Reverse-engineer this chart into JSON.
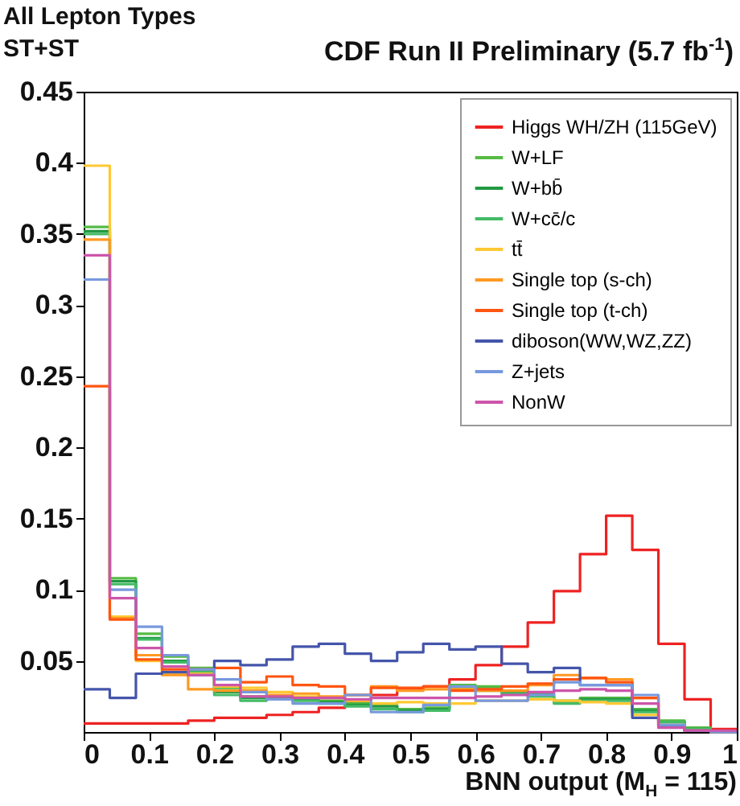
{
  "chart_data": {
    "type": "histogram",
    "title": "CDF Run II Preliminary (5.7 fb$^{-1}$)",
    "annotations": [
      "All Lepton Types",
      "ST+ST"
    ],
    "xlabel": "BNN output (M$_{H}$ = 115)",
    "bins": [
      0,
      0.04,
      0.08,
      0.12,
      0.16,
      0.2,
      0.24,
      0.28,
      0.32,
      0.36,
      0.4,
      0.44,
      0.48,
      0.52,
      0.56,
      0.6,
      0.64,
      0.68,
      0.72,
      0.76,
      0.8,
      0.84,
      0.88,
      0.92,
      0.96,
      1
    ],
    "xlim": [
      0,
      1
    ],
    "xticks": [
      0,
      0.1,
      0.2,
      0.3,
      0.4,
      0.5,
      0.6,
      0.7,
      0.8,
      0.9,
      1
    ],
    "ylim": [
      0,
      0.45
    ],
    "yticks": [
      0.05,
      0.1,
      0.15,
      0.2,
      0.25,
      0.3,
      0.35,
      0.4,
      0.45
    ],
    "legend": "top right",
    "series": [
      {
        "name": "Higgs WH/ZH (115GeV)",
        "color": "#ee2222",
        "values": [
          0.006,
          0.006,
          0.006,
          0.006,
          0.008,
          0.01,
          0.01,
          0.012,
          0.014,
          0.017,
          0.021,
          0.026,
          0.03,
          0.032,
          0.037,
          0.047,
          0.06,
          0.077,
          0.099,
          0.125,
          0.152,
          0.128,
          0.062,
          0.023,
          0.002
        ]
      },
      {
        "name": "W+LF",
        "color": "#55bb44",
        "values": [
          0.355,
          0.108,
          0.069,
          0.053,
          0.045,
          0.031,
          0.025,
          0.025,
          0.024,
          0.022,
          0.02,
          0.019,
          0.016,
          0.017,
          0.033,
          0.032,
          0.029,
          0.027,
          0.022,
          0.024,
          0.024,
          0.016,
          0.008,
          0.003,
          0
        ]
      },
      {
        "name": "W+bb̄",
        "color": "#229944",
        "values": [
          0.352,
          0.106,
          0.066,
          0.05,
          0.044,
          0.028,
          0.024,
          0.024,
          0.023,
          0.021,
          0.019,
          0.018,
          0.015,
          0.016,
          0.031,
          0.03,
          0.028,
          0.026,
          0.021,
          0.023,
          0.023,
          0.015,
          0.007,
          0.002,
          0
        ]
      },
      {
        "name": "W+cc̄/c",
        "color": "#44bb66",
        "values": [
          0.35,
          0.104,
          0.065,
          0.049,
          0.042,
          0.026,
          0.022,
          0.023,
          0.022,
          0.02,
          0.018,
          0.016,
          0.014,
          0.015,
          0.03,
          0.029,
          0.027,
          0.025,
          0.02,
          0.022,
          0.022,
          0.014,
          0.007,
          0.002,
          0
        ]
      },
      {
        "name": "tt̄",
        "color": "#ffc833",
        "values": [
          0.398,
          0.081,
          0.05,
          0.041,
          0.041,
          0.032,
          0.031,
          0.028,
          0.025,
          0.024,
          0.022,
          0.02,
          0.021,
          0.02,
          0.02,
          0.022,
          0.022,
          0.023,
          0.022,
          0.021,
          0.02,
          0.012,
          0.005,
          0.001,
          0
        ]
      },
      {
        "name": "Single top (s-ch)",
        "color": "#ff9922",
        "values": [
          0.346,
          0.08,
          0.054,
          0.04,
          0.03,
          0.029,
          0.029,
          0.026,
          0.027,
          0.025,
          0.026,
          0.032,
          0.029,
          0.03,
          0.03,
          0.029,
          0.029,
          0.033,
          0.04,
          0.038,
          0.037,
          0.024,
          0.004,
          0.001,
          0
        ]
      },
      {
        "name": "Single top (t-ch)",
        "color": "#ff5511",
        "values": [
          0.243,
          0.079,
          0.051,
          0.044,
          0.044,
          0.045,
          0.035,
          0.039,
          0.033,
          0.032,
          0.026,
          0.031,
          0.031,
          0.032,
          0.029,
          0.03,
          0.032,
          0.034,
          0.037,
          0.038,
          0.035,
          0.024,
          0.004,
          0.001,
          0
        ]
      },
      {
        "name": "diboson(WW,WZ,ZZ)",
        "color": "#4455aa",
        "values": [
          0.03,
          0.024,
          0.041,
          0.042,
          0.04,
          0.05,
          0.047,
          0.051,
          0.06,
          0.062,
          0.055,
          0.05,
          0.056,
          0.062,
          0.058,
          0.06,
          0.048,
          0.042,
          0.045,
          0.033,
          0.033,
          0.01,
          0.004,
          0.001,
          0
        ]
      },
      {
        "name": "Z+jets",
        "color": "#7799dd",
        "values": [
          0.318,
          0.1,
          0.074,
          0.054,
          0.044,
          0.037,
          0.028,
          0.023,
          0.02,
          0.02,
          0.026,
          0.014,
          0.014,
          0.019,
          0.032,
          0.022,
          0.022,
          0.026,
          0.035,
          0.033,
          0.033,
          0.026,
          0.005,
          0.001,
          0
        ]
      },
      {
        "name": "NonW",
        "color": "#cc55aa",
        "values": [
          0.335,
          0.094,
          0.059,
          0.046,
          0.04,
          0.033,
          0.025,
          0.025,
          0.024,
          0.024,
          0.023,
          0.024,
          0.024,
          0.024,
          0.024,
          0.025,
          0.026,
          0.028,
          0.029,
          0.03,
          0.029,
          0.02,
          0.003,
          0.001,
          0.001
        ]
      }
    ]
  }
}
